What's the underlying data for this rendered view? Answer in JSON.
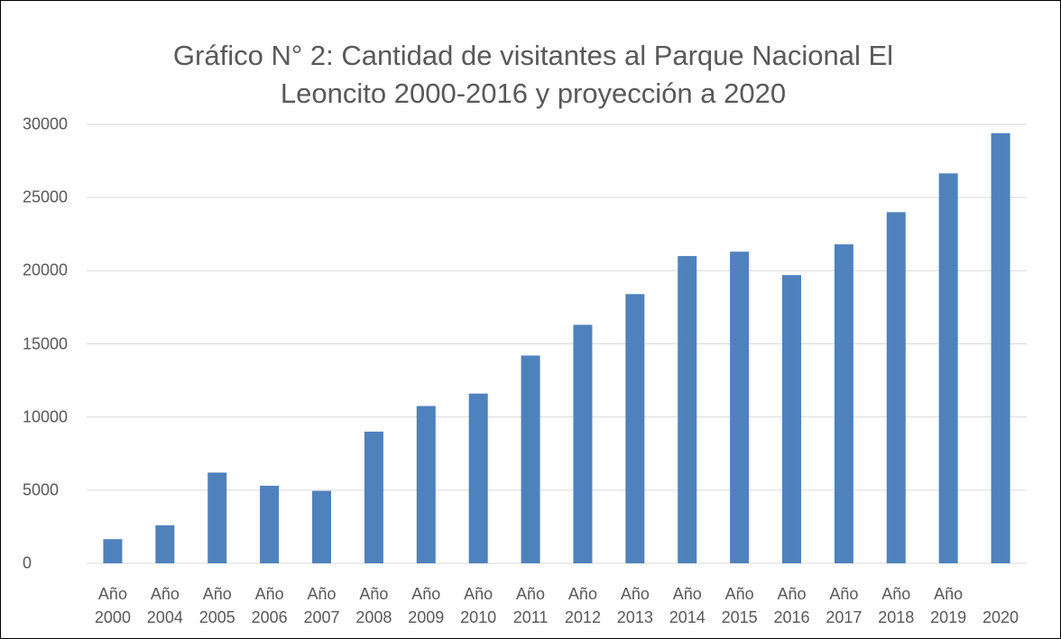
{
  "chart_data": {
    "type": "bar",
    "title": "Gráfico N° 2: Cantidad de visitantes al Parque Nacional El Leoncito 2000-2016 y proyección a 2020",
    "categories": [
      "Año 2000",
      "Año 2004",
      "Año 2005",
      "Año 2006",
      "Año 2007",
      "Año 2008",
      "Año 2009",
      "Año 2010",
      "Año 2011",
      "Año 2012",
      "Año 2013",
      "Año 2014",
      "Año 2015",
      "Año 2016",
      "Año 2017",
      "Año 2018",
      "Año 2019",
      "2020"
    ],
    "values": [
      1650,
      2600,
      6200,
      5300,
      4950,
      9000,
      10750,
      11600,
      14200,
      16300,
      18400,
      21000,
      21300,
      19700,
      21800,
      24000,
      26650,
      29400
    ],
    "color": "#4f81bd",
    "ylim": [
      0,
      30000
    ],
    "yticks": [
      0,
      5000,
      10000,
      15000,
      20000,
      25000,
      30000
    ],
    "grid": true
  }
}
